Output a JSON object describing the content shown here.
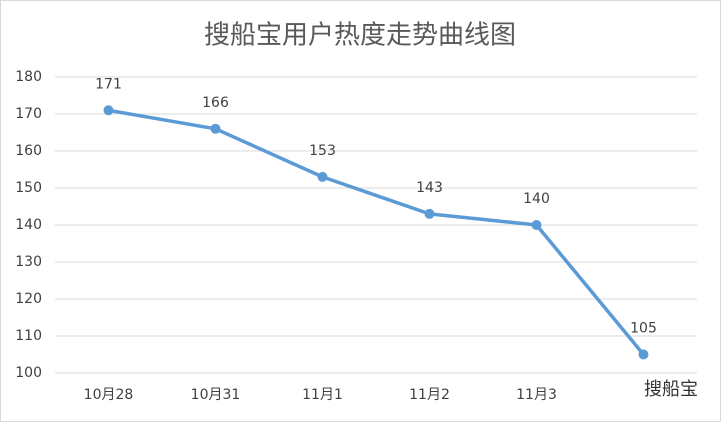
{
  "chart_data": {
    "type": "line",
    "title": "搜船宝用户热度走势曲线图",
    "categories": [
      "10月28",
      "10月31",
      "11月1",
      "11月2",
      "11月3",
      null
    ],
    "values": [
      171,
      166,
      153,
      143,
      140,
      105
    ],
    "color": "#5b9bd5",
    "ylim": [
      100,
      180
    ],
    "yticks": [
      100,
      110,
      120,
      130,
      140,
      150,
      160,
      170,
      180
    ],
    "grid": true,
    "watermark": "搜船宝"
  }
}
